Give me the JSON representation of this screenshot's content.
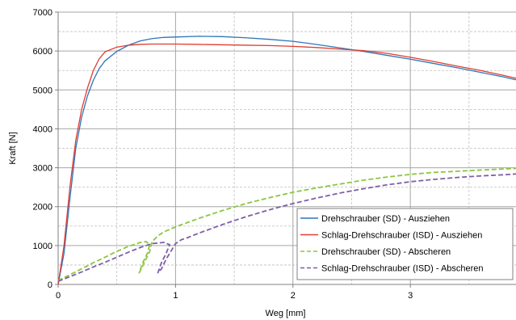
{
  "chart_data": {
    "type": "line",
    "xlabel": "Weg [mm]",
    "ylabel": "Kraft [N]",
    "xlim": [
      0,
      3.9
    ],
    "ylim": [
      0,
      7000
    ],
    "x_ticks": [
      0,
      1,
      2,
      3
    ],
    "x_tick_labels": [
      "0",
      "1",
      "2",
      "3"
    ],
    "x_minor_step": 0.5,
    "y_ticks": [
      0,
      1000,
      2000,
      3000,
      4000,
      5000,
      6000,
      7000
    ],
    "y_tick_labels": [
      "0",
      "1000",
      "2000",
      "3000",
      "4000",
      "5000",
      "6000",
      "7000"
    ],
    "y_minor_step": 500,
    "grid": true,
    "legend_position": "bottom-right",
    "series": [
      {
        "name": "Drehschrauber (SD) - Ausziehen",
        "color": "#2E75B6",
        "dash": "solid",
        "points": [
          [
            0,
            0
          ],
          [
            0.05,
            800
          ],
          [
            0.1,
            2200
          ],
          [
            0.15,
            3500
          ],
          [
            0.2,
            4300
          ],
          [
            0.25,
            4850
          ],
          [
            0.3,
            5250
          ],
          [
            0.35,
            5550
          ],
          [
            0.4,
            5750
          ],
          [
            0.5,
            5990
          ],
          [
            0.6,
            6150
          ],
          [
            0.7,
            6260
          ],
          [
            0.8,
            6320
          ],
          [
            0.9,
            6350
          ],
          [
            1.0,
            6360
          ],
          [
            1.2,
            6380
          ],
          [
            1.4,
            6370
          ],
          [
            1.6,
            6340
          ],
          [
            1.8,
            6300
          ],
          [
            2.0,
            6250
          ],
          [
            2.2,
            6170
          ],
          [
            2.4,
            6080
          ],
          [
            2.6,
            5990
          ],
          [
            2.8,
            5890
          ],
          [
            3.0,
            5790
          ],
          [
            3.2,
            5680
          ],
          [
            3.4,
            5570
          ],
          [
            3.6,
            5450
          ],
          [
            3.8,
            5330
          ],
          [
            3.9,
            5260
          ]
        ]
      },
      {
        "name": "Schlag-Drehschrauber (ISD) - Ausziehen",
        "color": "#E03C31",
        "dash": "solid",
        "points": [
          [
            0,
            0
          ],
          [
            0.05,
            1000
          ],
          [
            0.1,
            2500
          ],
          [
            0.15,
            3700
          ],
          [
            0.2,
            4500
          ],
          [
            0.25,
            5050
          ],
          [
            0.3,
            5500
          ],
          [
            0.35,
            5800
          ],
          [
            0.4,
            5980
          ],
          [
            0.5,
            6100
          ],
          [
            0.6,
            6150
          ],
          [
            0.7,
            6170
          ],
          [
            0.8,
            6180
          ],
          [
            1.0,
            6180
          ],
          [
            1.2,
            6170
          ],
          [
            1.4,
            6160
          ],
          [
            1.6,
            6150
          ],
          [
            1.8,
            6140
          ],
          [
            2.0,
            6120
          ],
          [
            2.2,
            6090
          ],
          [
            2.4,
            6050
          ],
          [
            2.6,
            6010
          ],
          [
            2.8,
            5940
          ],
          [
            3.0,
            5840
          ],
          [
            3.2,
            5730
          ],
          [
            3.4,
            5610
          ],
          [
            3.6,
            5500
          ],
          [
            3.8,
            5370
          ],
          [
            3.9,
            5300
          ]
        ]
      },
      {
        "name": "Drehschrauber (SD) - Abscheren",
        "color": "#8CC63F",
        "dash": "dashed",
        "points": [
          [
            0,
            100
          ],
          [
            0.1,
            250
          ],
          [
            0.2,
            400
          ],
          [
            0.3,
            560
          ],
          [
            0.4,
            700
          ],
          [
            0.5,
            850
          ],
          [
            0.6,
            980
          ],
          [
            0.7,
            1080
          ],
          [
            0.75,
            1100
          ],
          [
            0.78,
            1020
          ],
          [
            0.76,
            800
          ],
          [
            0.72,
            550
          ],
          [
            0.69,
            300
          ],
          [
            0.7,
            350
          ],
          [
            0.74,
            600
          ],
          [
            0.78,
            850
          ],
          [
            0.8,
            1100
          ],
          [
            0.85,
            1250
          ],
          [
            0.9,
            1350
          ],
          [
            1.0,
            1480
          ],
          [
            1.2,
            1700
          ],
          [
            1.4,
            1900
          ],
          [
            1.6,
            2080
          ],
          [
            1.8,
            2230
          ],
          [
            2.0,
            2370
          ],
          [
            2.2,
            2480
          ],
          [
            2.4,
            2580
          ],
          [
            2.6,
            2680
          ],
          [
            2.8,
            2760
          ],
          [
            3.0,
            2830
          ],
          [
            3.2,
            2880
          ],
          [
            3.4,
            2910
          ],
          [
            3.6,
            2940
          ],
          [
            3.8,
            2970
          ],
          [
            3.9,
            2980
          ]
        ]
      },
      {
        "name": "Schlag-Drehschrauber (ISD) - Abscheren",
        "color": "#7F5FA8",
        "dash": "dashed",
        "points": [
          [
            0,
            80
          ],
          [
            0.1,
            200
          ],
          [
            0.2,
            320
          ],
          [
            0.3,
            450
          ],
          [
            0.4,
            570
          ],
          [
            0.5,
            700
          ],
          [
            0.6,
            830
          ],
          [
            0.7,
            950
          ],
          [
            0.8,
            1050
          ],
          [
            0.9,
            1080
          ],
          [
            0.95,
            1020
          ],
          [
            0.92,
            800
          ],
          [
            0.88,
            560
          ],
          [
            0.85,
            300
          ],
          [
            0.88,
            400
          ],
          [
            0.92,
            650
          ],
          [
            0.97,
            900
          ],
          [
            1.0,
            1050
          ],
          [
            1.05,
            1150
          ],
          [
            1.1,
            1200
          ],
          [
            1.2,
            1320
          ],
          [
            1.4,
            1540
          ],
          [
            1.6,
            1740
          ],
          [
            1.8,
            1920
          ],
          [
            2.0,
            2080
          ],
          [
            2.2,
            2220
          ],
          [
            2.4,
            2350
          ],
          [
            2.6,
            2460
          ],
          [
            2.8,
            2560
          ],
          [
            3.0,
            2640
          ],
          [
            3.2,
            2700
          ],
          [
            3.4,
            2750
          ],
          [
            3.6,
            2790
          ],
          [
            3.8,
            2820
          ],
          [
            3.9,
            2840
          ]
        ]
      }
    ]
  }
}
